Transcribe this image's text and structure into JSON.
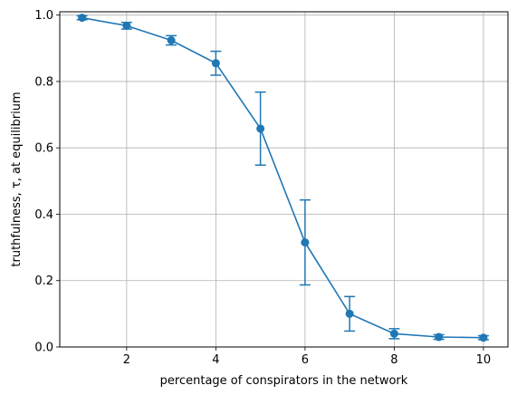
{
  "chart_data": {
    "type": "line",
    "xlabel": "percentage of conspirators in the network",
    "ylabel": "truthfulness, τ, at equilibrium",
    "xlim": [
      0.5,
      10.55
    ],
    "ylim": [
      0.0,
      1.01
    ],
    "grid": true,
    "xticks": [
      2,
      4,
      6,
      8,
      10
    ],
    "yticks": [
      0.0,
      0.2,
      0.4,
      0.6,
      0.8,
      1.0
    ],
    "xtick_labels": [
      "2",
      "4",
      "6",
      "8",
      "10"
    ],
    "ytick_labels": [
      "0.0",
      "0.2",
      "0.4",
      "0.6",
      "0.8",
      "1.0"
    ],
    "colors": {
      "series": "#1f77b4",
      "grid": "#b0b0b0",
      "axes": "#000000"
    },
    "series": [
      {
        "x": [
          1,
          2,
          3,
          4,
          5,
          6,
          7,
          8,
          9,
          10
        ],
        "y": [
          0.992,
          0.968,
          0.924,
          0.855,
          0.658,
          0.315,
          0.1,
          0.04,
          0.03,
          0.028
        ],
        "yerr": [
          0.006,
          0.01,
          0.014,
          0.036,
          0.11,
          0.128,
          0.052,
          0.015,
          0.007,
          0.006
        ]
      }
    ]
  }
}
